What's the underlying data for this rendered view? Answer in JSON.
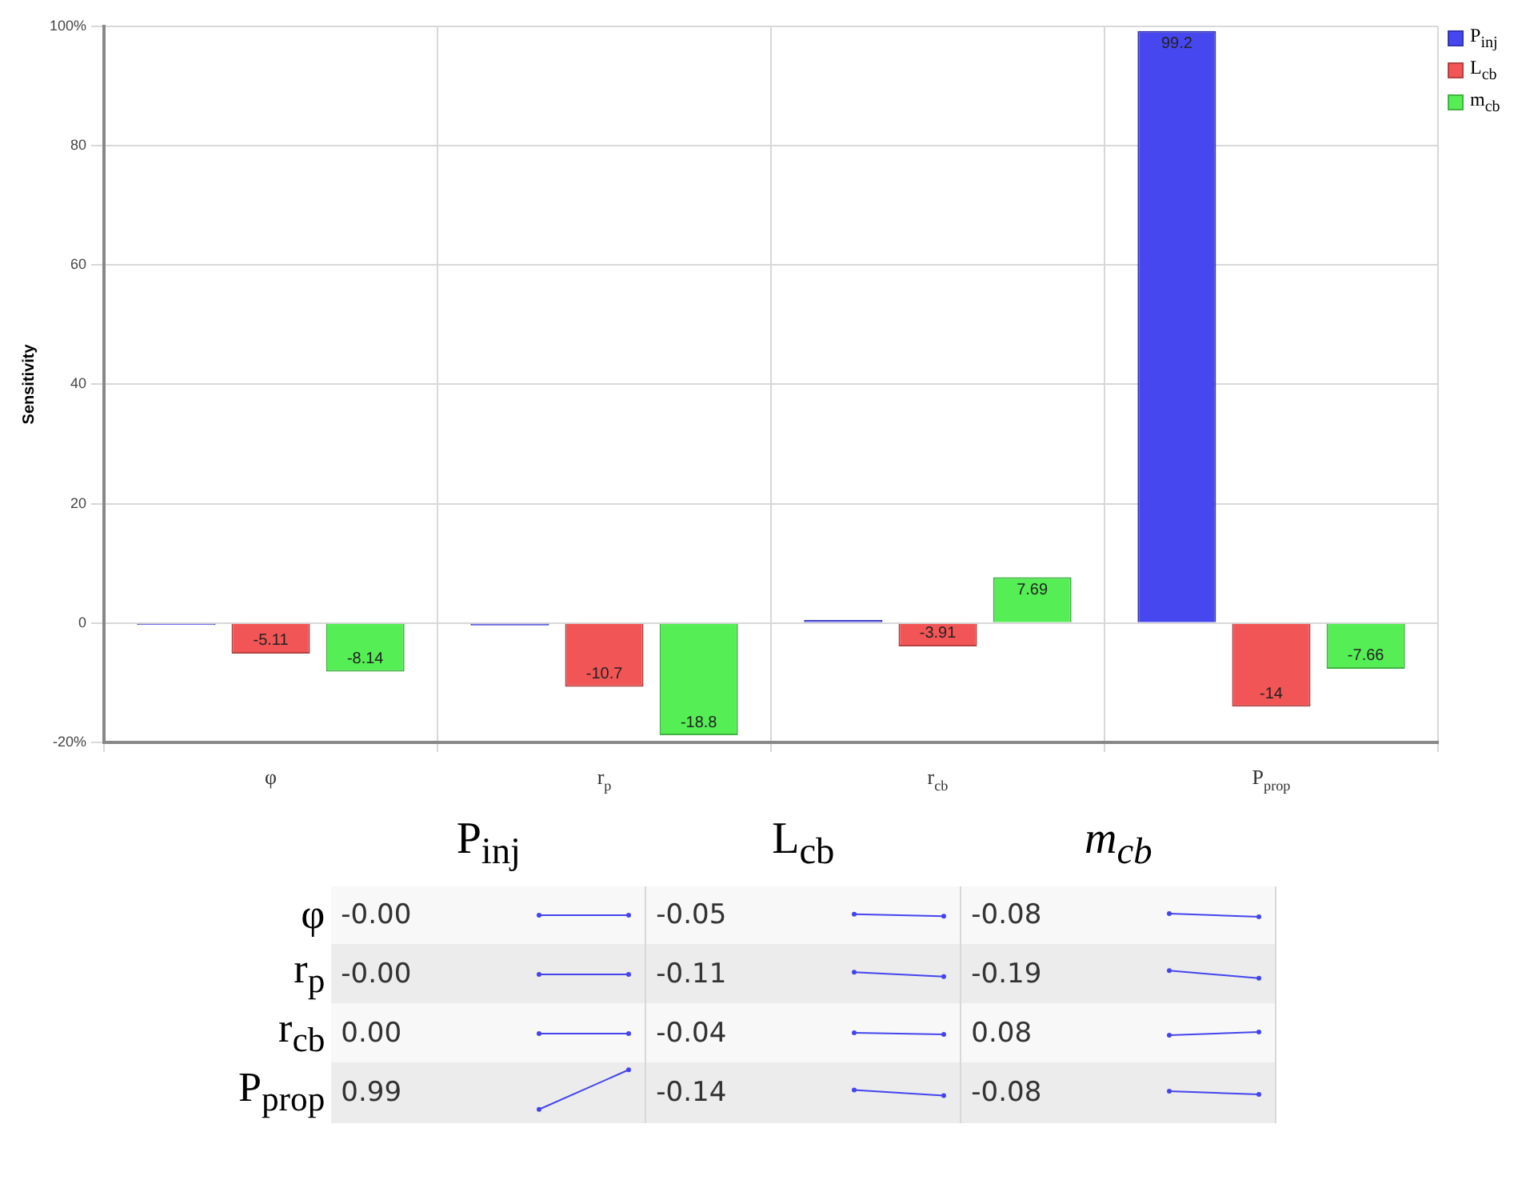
{
  "chart_data": [
    {
      "type": "bar",
      "ylabel": "Sensitivity",
      "categories": [
        "φ",
        "r$_{p}$",
        "r$_{cb}$",
        "P$_{prop}$"
      ],
      "series": [
        {
          "name": "P$_{inj}$",
          "color": "#4747f0",
          "values": [
            -0.3,
            -0.4,
            0.5,
            99.2
          ],
          "value_labels": [
            null,
            null,
            null,
            "99.2"
          ]
        },
        {
          "name": "L$_{cb}$",
          "color": "#f25555",
          "values": [
            -5.11,
            -10.7,
            -3.91,
            -14
          ],
          "value_labels": [
            "-5.11",
            "-10.7",
            "-3.91",
            "-14"
          ]
        },
        {
          "name": "m$_{cb}$",
          "color": "#55ee55",
          "values": [
            -8.14,
            -18.8,
            7.69,
            -7.66
          ],
          "value_labels": [
            "-8.14",
            "-18.8",
            "7.69",
            "-7.66"
          ]
        }
      ],
      "ylim": [
        -20,
        100
      ],
      "yticks": [
        {
          "value": -20,
          "label": "-20%"
        },
        0,
        20,
        40,
        60,
        80,
        {
          "value": 100,
          "label": "100%"
        }
      ],
      "grid": true,
      "legend": "top right"
    },
    {
      "type": "heatmap",
      "categories": [
        "P$_{inj}$",
        "L$_{cb}$",
        "m$_{cb}$"
      ],
      "y_categories": [
        "φ",
        "r$_{p}$",
        "r$_{cb}$",
        "P$_{prop}$"
      ],
      "cells": [
        [
          -0.0,
          -0.05,
          -0.08
        ],
        [
          -0.0,
          -0.11,
          -0.19
        ],
        [
          0.0,
          -0.04,
          0.08
        ],
        [
          0.99,
          -0.14,
          -0.08
        ]
      ],
      "cell_labels": [
        [
          "-0.00",
          "-0.05",
          "-0.08"
        ],
        [
          "-0.00",
          "-0.11",
          "-0.19"
        ],
        [
          "0.00",
          "-0.04",
          "0.08"
        ],
        [
          "0.99",
          "-0.14",
          "-0.08"
        ]
      ]
    }
  ]
}
